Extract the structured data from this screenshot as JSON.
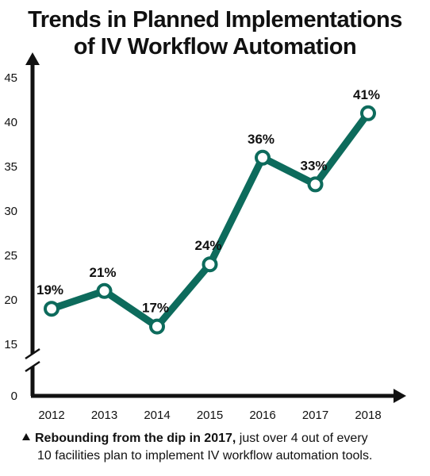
{
  "title_line1": "Trends in Planned Implementations",
  "title_line2": "of IV Workflow Automation",
  "footnote": {
    "bold": "Rebounding from the dip in 2017,",
    "rest_line1": " just over 4 out of every",
    "line2": "10 facilities plan to implement IV workflow automation tools."
  },
  "colors": {
    "line": "#0d6b5c",
    "axis": "#111111",
    "marker_fill": "#ffffff"
  },
  "chart_data": {
    "type": "line",
    "x": [
      "2012",
      "2013",
      "2014",
      "2015",
      "2016",
      "2017",
      "2018"
    ],
    "series": [
      {
        "values": [
          19,
          21,
          17,
          24,
          36,
          33,
          41
        ],
        "labels": [
          "19%",
          "21%",
          "17%",
          "24%",
          "36%",
          "33%",
          "41%"
        ]
      }
    ],
    "yticks": [
      "0",
      "15",
      "20",
      "25",
      "30",
      "35",
      "40",
      "45"
    ],
    "ylim": [
      15,
      45
    ],
    "axis_break": true,
    "grid": false
  }
}
